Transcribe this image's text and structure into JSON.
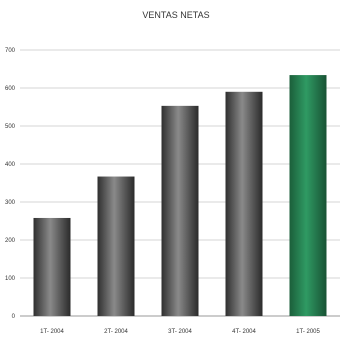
{
  "chart_data": {
    "type": "bar",
    "title": "VENTAS NETAS",
    "xlabel": "",
    "ylabel": "",
    "categories": [
      "1T- 2004",
      "2T- 2004",
      "3T- 2004",
      "4T- 2004",
      "1T- 2005"
    ],
    "values": [
      258,
      367,
      553,
      590,
      634
    ],
    "ylim": [
      0,
      700
    ],
    "yticks": [
      0,
      100,
      200,
      300,
      400,
      500,
      600,
      700
    ],
    "grid": true,
    "legend": "none",
    "colors": {
      "default_bar": "#5a5a5a",
      "highlight_bar": "#2e8b57"
    },
    "highlight_index": 4
  }
}
